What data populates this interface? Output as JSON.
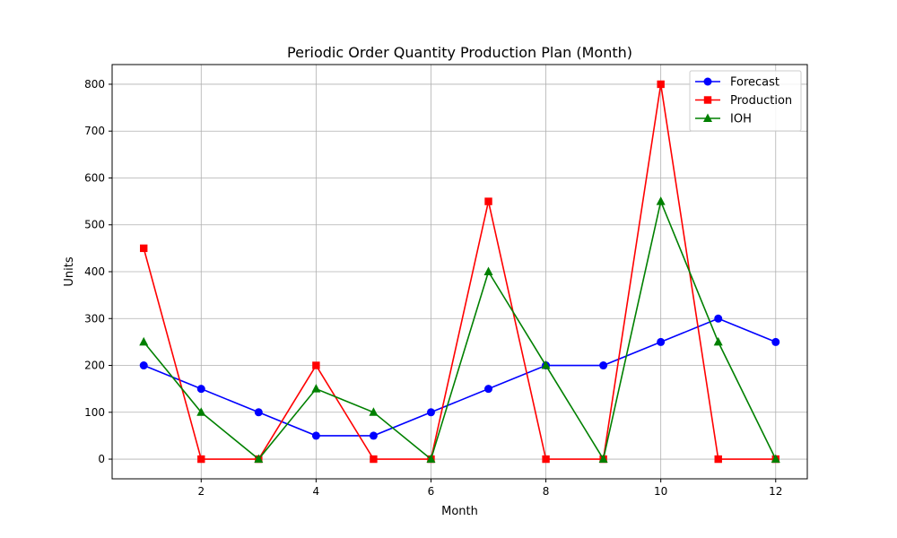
{
  "chart_data": {
    "type": "line",
    "title": "Periodic Order Quantity Production Plan (Month)",
    "xlabel": "Month",
    "ylabel": "Units",
    "x": [
      1,
      2,
      3,
      4,
      5,
      6,
      7,
      8,
      9,
      10,
      11,
      12
    ],
    "xlim": [
      0.45,
      12.55
    ],
    "ylim": [
      -42,
      842
    ],
    "xticks": [
      2,
      4,
      6,
      8,
      10,
      12
    ],
    "yticks": [
      0,
      100,
      200,
      300,
      400,
      500,
      600,
      700,
      800
    ],
    "grid": true,
    "legend_position": "top-right",
    "series": [
      {
        "name": "Forecast",
        "color": "#0000ff",
        "marker": "circle",
        "values": [
          200,
          150,
          100,
          50,
          50,
          100,
          150,
          200,
          200,
          250,
          300,
          250
        ]
      },
      {
        "name": "Production",
        "color": "#ff0000",
        "marker": "square",
        "values": [
          450,
          0,
          0,
          200,
          0,
          0,
          550,
          0,
          0,
          800,
          0,
          0
        ]
      },
      {
        "name": "IOH",
        "color": "#008000",
        "marker": "triangle",
        "values": [
          250,
          100,
          0,
          150,
          100,
          0,
          400,
          200,
          0,
          550,
          250,
          0
        ]
      }
    ]
  }
}
